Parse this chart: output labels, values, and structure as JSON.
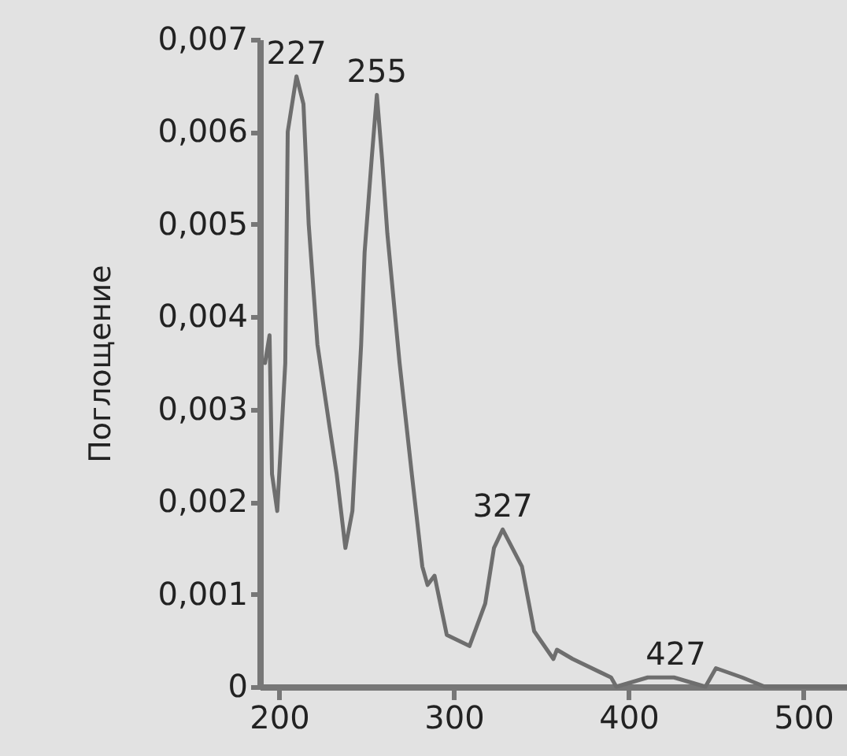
{
  "chart_data": {
    "type": "line",
    "ylabel": "Поглощение",
    "x": [
      192,
      194.6,
      196,
      199,
      203.6,
      205,
      210,
      214,
      217,
      222,
      229,
      233,
      238,
      242,
      247,
      249,
      253,
      256,
      259,
      262,
      269,
      276,
      282,
      285,
      289,
      296,
      309,
      318,
      323,
      328,
      339,
      346,
      357,
      359,
      368,
      390,
      393,
      411,
      426,
      444,
      450,
      465,
      478,
      495,
      525
    ],
    "series": [
      {
        "color": "#6e6e6e",
        "values": [
          0.0035,
          0.0038,
          0.0023,
          0.0019,
          0.0035,
          0.006,
          0.0066,
          0.0063,
          0.005,
          0.0037,
          0.0028,
          0.0023,
          0.0015,
          0.0019,
          0.0037,
          0.0047,
          0.0057,
          0.0064,
          0.0057,
          0.0049,
          0.0035,
          0.0023,
          0.0013,
          0.0011,
          0.0012,
          0.00056,
          0.00044,
          0.0009,
          0.0015,
          0.0017,
          0.0013,
          0.0006,
          0.0003,
          0.0004,
          0.0003,
          0.0001,
          0,
          0.0001,
          0.0001,
          0,
          0.0002,
          0.0001,
          0,
          0,
          0
        ]
      }
    ],
    "xlim": [
      189,
      525
    ],
    "xticks": [
      200,
      300,
      400,
      500
    ],
    "ylim": [
      0,
      0.007
    ],
    "yticks": [
      0,
      {
        "value": 0.001,
        "label": "0,001"
      },
      {
        "value": 0.002,
        "label": "0,002"
      },
      {
        "value": 0.003,
        "label": "0,003"
      },
      {
        "value": 0.004,
        "label": "0,004"
      },
      {
        "value": 0.005,
        "label": "0,005"
      },
      {
        "value": 0.006,
        "label": "0,006"
      },
      {
        "value": 0.007,
        "label": "0,007"
      }
    ],
    "annotations": [
      {
        "text": "227",
        "x": 210,
        "y": 0.0066
      },
      {
        "text": "255",
        "x": 256,
        "y": 0.0064
      },
      {
        "text": "327",
        "x": 328,
        "y": 0.0017
      },
      {
        "text": "427",
        "x": 427,
        "y": 0.0001
      }
    ]
  }
}
